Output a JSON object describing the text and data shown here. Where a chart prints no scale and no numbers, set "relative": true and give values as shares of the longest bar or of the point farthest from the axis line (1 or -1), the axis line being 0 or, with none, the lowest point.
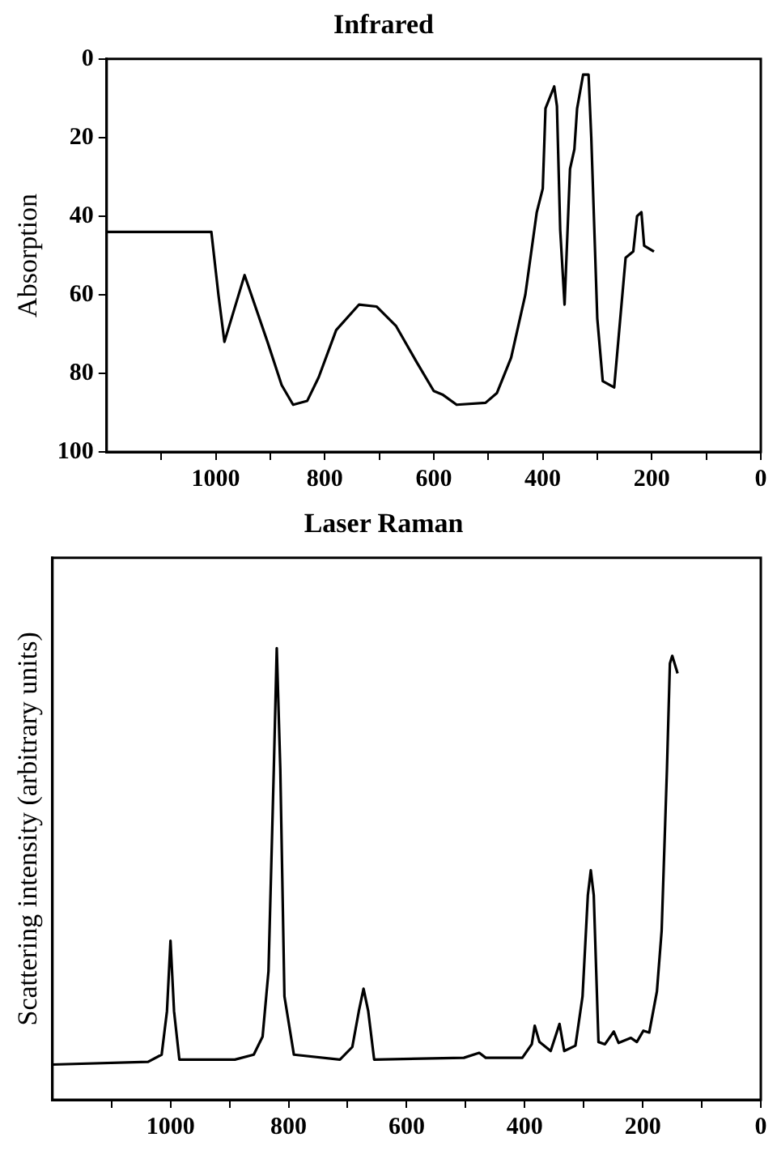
{
  "chart_data": [
    {
      "type": "line",
      "title": "Infrared",
      "ylabel": "Absorption",
      "color": "#000000",
      "marker": "none",
      "line_style": "solid",
      "x": [
        1200,
        1008,
        995,
        984,
        947,
        905,
        879,
        858,
        832,
        811,
        779,
        737,
        705,
        669,
        632,
        600,
        584,
        558,
        505,
        484,
        458,
        432,
        411,
        400,
        395,
        379,
        374,
        368,
        360,
        350,
        342,
        337,
        326,
        316,
        311,
        300,
        290,
        269,
        248,
        234,
        227,
        219,
        214,
        196
      ],
      "values": [
        44,
        44,
        60,
        72,
        55,
        72,
        83,
        88,
        87,
        81,
        69,
        62.5,
        63,
        68,
        77,
        84.5,
        85.4,
        88,
        87.5,
        85,
        76,
        60,
        39,
        33,
        12.6,
        7,
        12,
        43.5,
        62.5,
        28,
        23,
        12.6,
        4,
        4,
        20,
        66,
        82,
        83.6,
        50.6,
        49,
        40,
        39,
        47.5,
        49
      ],
      "xlim": [
        1200,
        0
      ],
      "xticks": [
        {
          "value": 1100,
          "label": null
        },
        1000,
        {
          "value": 900,
          "label": null
        },
        800,
        {
          "value": 700,
          "label": null
        },
        600,
        {
          "value": 500,
          "label": null
        },
        400,
        {
          "value": 300,
          "label": null
        },
        200,
        {
          "value": 100,
          "label": null
        },
        0
      ],
      "ylim": [
        100,
        0
      ],
      "yticks": [
        0,
        20,
        40,
        60,
        80,
        100
      ]
    },
    {
      "type": "line",
      "title": "Laser Raman",
      "ylabel": "Scattering intensity (arbitrary units)",
      "color": "#000000",
      "marker": "none",
      "line_style": "solid",
      "relative": true,
      "x": [
        1200,
        1038,
        1015,
        1006,
        1000,
        994,
        985,
        891,
        859,
        844,
        834,
        825,
        820,
        814,
        807,
        791,
        713,
        692,
        681,
        673,
        665,
        655,
        503,
        477,
        466,
        404,
        388,
        383,
        375,
        356,
        341,
        333,
        314,
        302,
        293,
        288,
        283,
        275,
        264,
        249,
        241,
        220,
        210,
        199,
        189,
        176,
        168,
        159,
        154,
        150,
        141
      ],
      "values": [
        0.078,
        0.084,
        0.1,
        0.196,
        0.352,
        0.196,
        0.089,
        0.089,
        0.1,
        0.14,
        0.285,
        0.732,
        1,
        0.732,
        0.229,
        0.1,
        0.089,
        0.117,
        0.196,
        0.246,
        0.196,
        0.089,
        0.093,
        0.104,
        0.093,
        0.093,
        0.123,
        0.164,
        0.128,
        0.108,
        0.168,
        0.108,
        0.12,
        0.229,
        0.453,
        0.508,
        0.453,
        0.128,
        0.123,
        0.151,
        0.126,
        0.137,
        0.128,
        0.153,
        0.149,
        0.24,
        0.374,
        0.732,
        0.966,
        0.983,
        0.944
      ],
      "xlim": [
        1200,
        0
      ],
      "xticks": [
        {
          "value": 1100,
          "label": null
        },
        1000,
        {
          "value": 900,
          "label": null
        },
        800,
        {
          "value": 700,
          "label": null
        },
        600,
        {
          "value": 500,
          "label": null
        },
        400,
        {
          "value": 300,
          "label": null
        },
        200,
        {
          "value": 100,
          "label": null
        },
        0
      ]
    }
  ]
}
